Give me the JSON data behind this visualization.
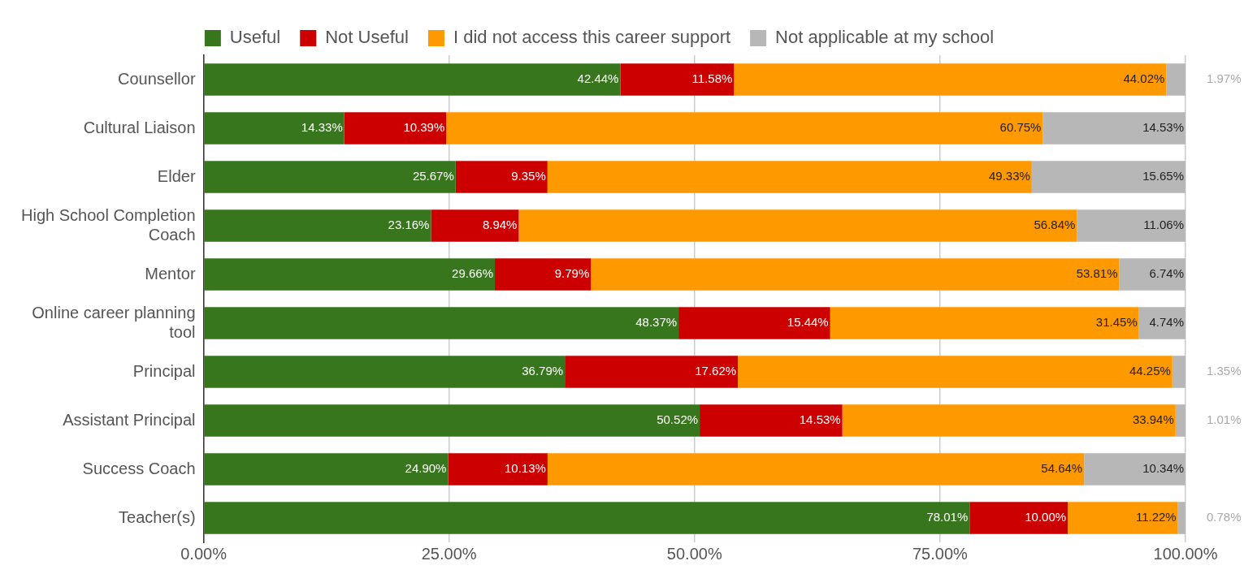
{
  "chart_data": {
    "type": "bar",
    "orientation": "horizontal",
    "stacked": true,
    "legend": "top",
    "grid": "x",
    "categories": [
      "Counsellor",
      "Cultural Liaison",
      "Elder",
      "High School Completion Coach",
      "Mentor",
      "Online career planning tool",
      "Principal",
      "Assistant Principal",
      "Success Coach",
      "Teacher(s)"
    ],
    "xlim": [
      0,
      100
    ],
    "xticks": [
      {
        "value": 0,
        "label": "0.00%"
      },
      {
        "value": 25,
        "label": "25.00%"
      },
      {
        "value": 50,
        "label": "50.00%"
      },
      {
        "value": 75,
        "label": "75.00%"
      },
      {
        "value": 100,
        "label": "100.00%"
      }
    ],
    "series": [
      {
        "name": "Useful",
        "color": "#38761d",
        "values": [
          42.44,
          14.33,
          25.67,
          23.16,
          29.66,
          48.37,
          36.79,
          50.52,
          24.9,
          78.01
        ],
        "value_labels": [
          "42.44%",
          "14.33%",
          "25.67%",
          "23.16%",
          "29.66%",
          "48.37%",
          "36.79%",
          "50.52%",
          "24.90%",
          "78.01%"
        ]
      },
      {
        "name": "Not Useful",
        "color": "#cc0000",
        "values": [
          11.58,
          10.39,
          9.35,
          8.94,
          9.79,
          15.44,
          17.62,
          14.53,
          10.13,
          10.0
        ],
        "value_labels": [
          "11.58%",
          "10.39%",
          "9.35%",
          "8.94%",
          "9.79%",
          "15.44%",
          "17.62%",
          "14.53%",
          "10.13%",
          "10.00%"
        ]
      },
      {
        "name": "I did not access this career support",
        "color": "#ff9900",
        "values": [
          44.02,
          60.75,
          49.33,
          56.84,
          53.81,
          31.45,
          44.25,
          33.94,
          54.64,
          11.22
        ],
        "value_labels": [
          "44.02%",
          "60.75%",
          "49.33%",
          "56.84%",
          "53.81%",
          "31.45%",
          "44.25%",
          "33.94%",
          "54.64%",
          "11.22%"
        ]
      },
      {
        "name": "Not applicable at my school",
        "color": "#b7b7b7",
        "values": [
          1.97,
          14.53,
          15.65,
          11.06,
          6.74,
          4.74,
          1.35,
          1.01,
          10.34,
          0.78
        ],
        "value_labels": [
          "1.97%",
          "14.53%",
          "15.65%",
          "11.06%",
          "6.74%",
          "4.74%",
          "1.35%",
          "1.01%",
          "10.34%",
          "0.78%"
        ]
      }
    ]
  }
}
